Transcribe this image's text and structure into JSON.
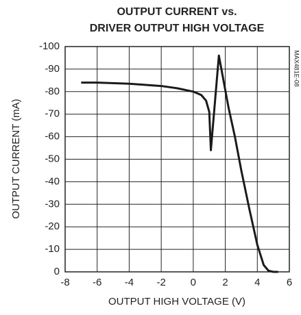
{
  "chart_data": {
    "type": "line",
    "title": [
      "OUTPUT CURRENT vs.",
      "DRIVER OUTPUT HIGH VOLTAGE"
    ],
    "x_label": "OUTPUT HIGH VOLTAGE (V)",
    "y_label": "OUTPUT CURRENT (mA)",
    "side_note": "MAX481E-08",
    "x": [
      -7,
      -6,
      -4,
      -2,
      -1,
      0,
      0.5,
      0.8,
      1.0,
      1.1,
      1.6,
      2.2,
      2.6,
      3.0,
      3.5,
      4.0,
      4.4,
      4.7,
      5.0,
      5.3
    ],
    "series": [
      {
        "name": "output current",
        "color": "#1a1a1a",
        "values": [
          -84,
          -84,
          -83.5,
          -82.5,
          -81.5,
          -80,
          -78.5,
          -76,
          -71,
          -54,
          -96,
          -73,
          -60,
          -45,
          -28,
          -12,
          -3,
          -0.5,
          0,
          0
        ]
      }
    ],
    "xlim": [
      -8,
      6
    ],
    "xticks": [
      -8,
      -6,
      -4,
      -2,
      0,
      2,
      4,
      6
    ],
    "ylim": [
      0,
      -100
    ],
    "yticks": [
      0,
      -10,
      -20,
      -30,
      -40,
      -50,
      -60,
      -70,
      -80,
      -90,
      -100
    ],
    "grid": true
  }
}
